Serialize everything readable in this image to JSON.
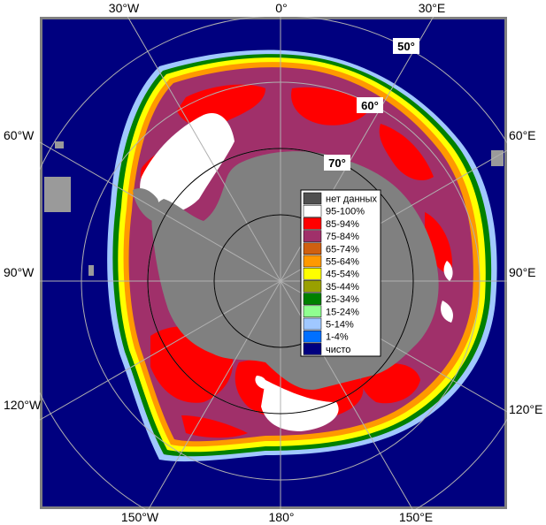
{
  "map": {
    "lon_labels": {
      "top": [
        "30°W",
        "0°",
        "30°E"
      ],
      "left": [
        "60°W",
        "90°W",
        "120°W"
      ],
      "right": [
        "60°E",
        "90°E",
        "120°E"
      ],
      "bottom": [
        "150°W",
        "180°",
        "150°E"
      ]
    },
    "lat_labels": [
      "50°",
      "60°",
      "70°"
    ],
    "colors": {
      "ocean_open": "#00007f",
      "no_data": "#808080",
      "frame": "#808080"
    }
  },
  "legend": {
    "items": [
      {
        "label": "нет данных",
        "color": "#505050"
      },
      {
        "label": "95-100%",
        "color": "#ffffff"
      },
      {
        "label": "85-94%",
        "color": "#ff0000"
      },
      {
        "label": "75-84%",
        "color": "#a0306a"
      },
      {
        "label": "65-74%",
        "color": "#d06010"
      },
      {
        "label": "55-64%",
        "color": "#ff9900"
      },
      {
        "label": "45-54%",
        "color": "#ffff00"
      },
      {
        "label": "35-44%",
        "color": "#99a000"
      },
      {
        "label": "25-34%",
        "color": "#008000"
      },
      {
        "label": "15-24%",
        "color": "#90ff90"
      },
      {
        "label": "5-14%",
        "color": "#a0c8ff"
      },
      {
        "label": "1-4%",
        "color": "#0070ff"
      },
      {
        "label": "чисто",
        "color": "#00007f"
      }
    ]
  }
}
